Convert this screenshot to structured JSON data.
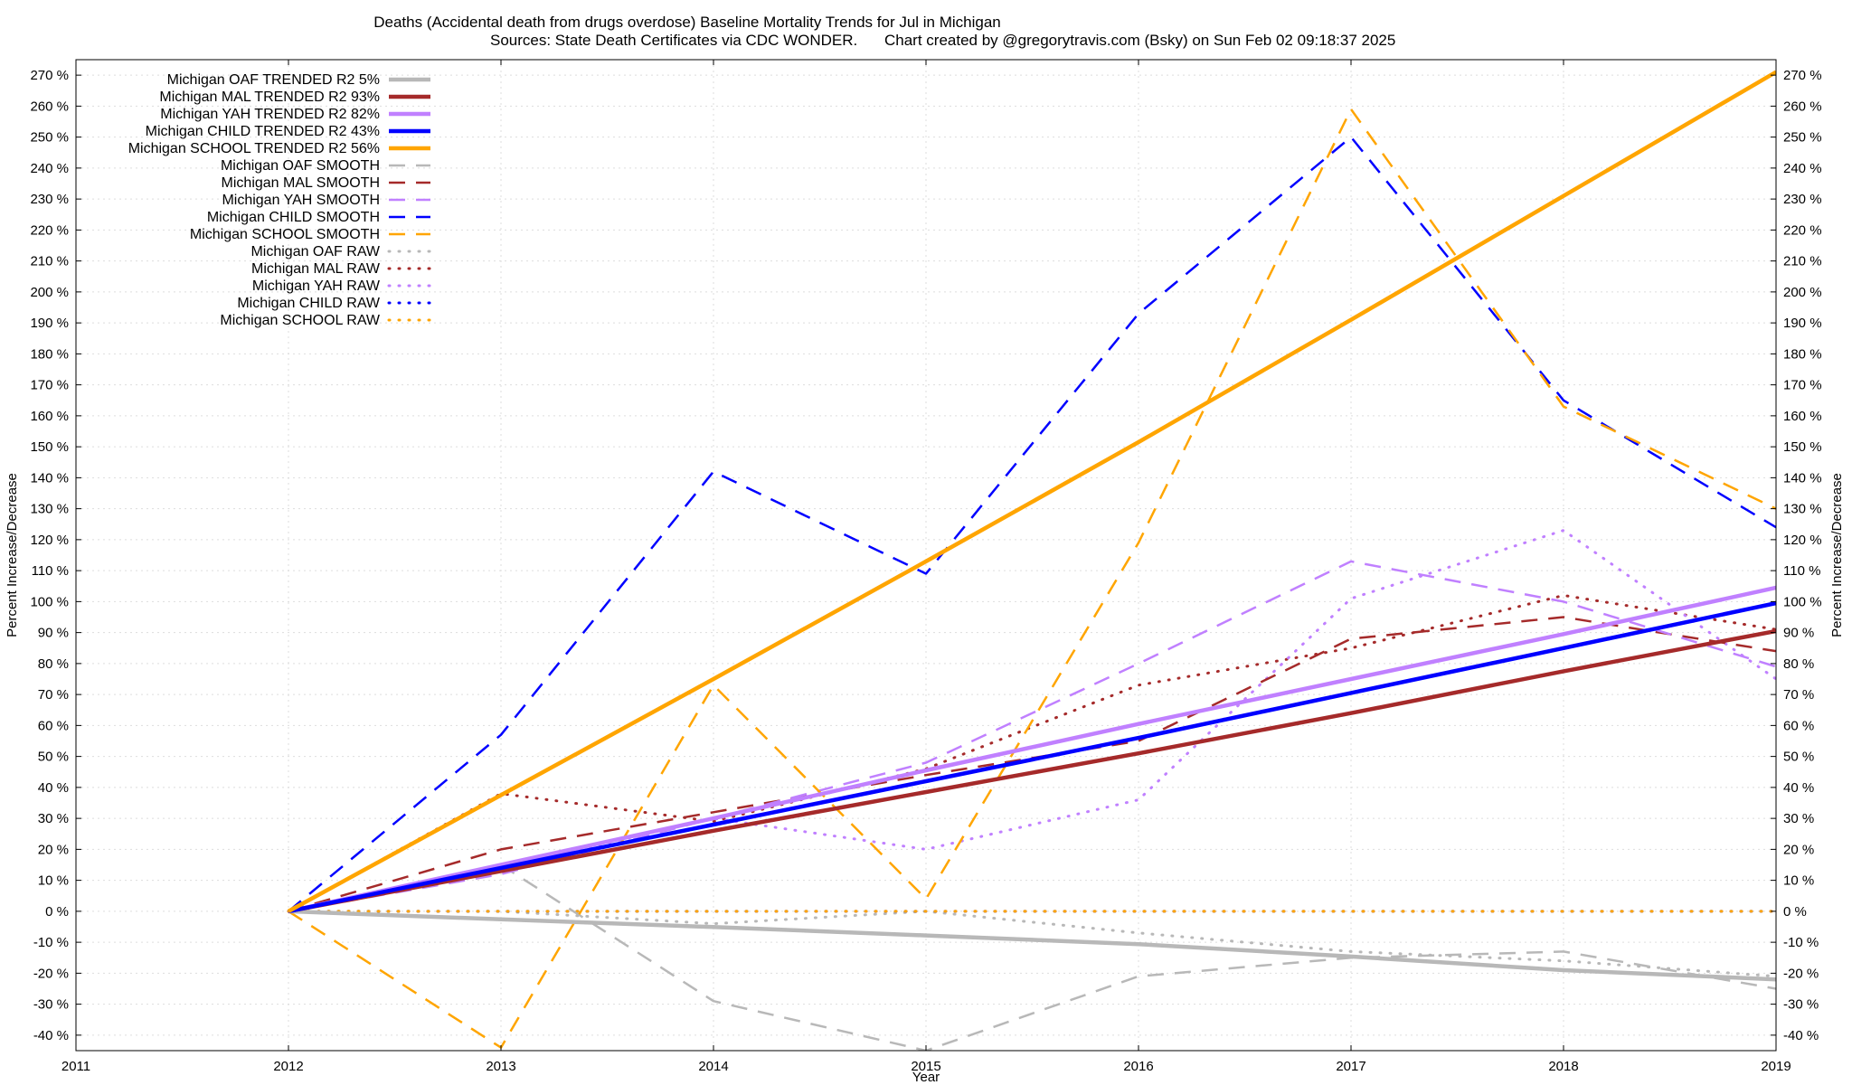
{
  "chart_data": {
    "type": "line",
    "title_line1": "Deaths (Accidental death from drugs overdose)  Baseline Mortality Trends for Jul in Michigan",
    "title_line2_left": "Sources: State Death Certificates via CDC WONDER.",
    "title_line2_right": "Chart created by @gregorytravis.com (Bsky) on Sun Feb 02 09:18:37 2025",
    "xlabel": "Year",
    "ylabel": "Percent Increase/Decrease",
    "xlim": [
      2011,
      2019
    ],
    "ylim": [
      -45,
      275
    ],
    "x_ticks": [
      "2011",
      "2012",
      "2013",
      "2014",
      "2015",
      "2016",
      "2017",
      "2018",
      "2019"
    ],
    "y_ticks": [
      270,
      260,
      250,
      240,
      230,
      220,
      210,
      200,
      190,
      180,
      170,
      160,
      150,
      140,
      130,
      120,
      110,
      100,
      90,
      80,
      70,
      60,
      50,
      40,
      30,
      20,
      10,
      0,
      -10,
      -20,
      -30,
      -40
    ],
    "grid": true,
    "legend_position": "top-left",
    "x": [
      2012,
      2013,
      2014,
      2015,
      2016,
      2017,
      2018,
      2019
    ],
    "series": [
      {
        "name": "Michigan OAF TRENDED R2  5%",
        "style": "trend",
        "color": "#b8b8b8",
        "values": [
          0,
          -2.6,
          -5.1,
          -7.8,
          -10.6,
          -14.6,
          -19,
          -22
        ]
      },
      {
        "name": "Michigan MAL TRENDED R2  93%",
        "style": "trend",
        "color": "#a52a2a",
        "values": [
          0,
          13,
          26,
          38.5,
          51,
          64,
          77.5,
          90.5
        ]
      },
      {
        "name": "Michigan YAH TRENDED R2  82%",
        "style": "trend",
        "color": "#c080ff",
        "values": [
          0,
          15,
          30,
          45.5,
          60.5,
          75,
          89.5,
          104.5
        ]
      },
      {
        "name": "Michigan CHILD TRENDED R2  43%",
        "style": "trend",
        "color": "#0000ff",
        "values": [
          0,
          14,
          28,
          42,
          56,
          70.5,
          85,
          99.5
        ]
      },
      {
        "name": "Michigan SCHOOL TRENDED R2  56%",
        "style": "trend",
        "color": "#ffa500",
        "values": [
          0,
          37.5,
          75,
          113,
          151.5,
          191,
          231,
          271
        ]
      },
      {
        "name": "Michigan OAF SMOOTH",
        "style": "smooth",
        "color": "#b8b8b8",
        "values": [
          0,
          15,
          -29,
          -45,
          -21,
          -15,
          -13,
          -25
        ]
      },
      {
        "name": "Michigan MAL SMOOTH",
        "style": "smooth",
        "color": "#a52a2a",
        "values": [
          0,
          20,
          32,
          44,
          55,
          88,
          95,
          84
        ]
      },
      {
        "name": "Michigan YAH SMOOTH",
        "style": "smooth",
        "color": "#c080ff",
        "values": [
          0,
          12,
          30,
          48,
          80,
          113,
          100,
          79
        ]
      },
      {
        "name": "Michigan CHILD SMOOTH",
        "style": "smooth",
        "color": "#0000ff",
        "values": [
          0,
          57,
          142,
          109,
          193,
          250,
          165,
          124
        ]
      },
      {
        "name": "Michigan SCHOOL SMOOTH",
        "style": "smooth",
        "color": "#ffa500",
        "values": [
          0,
          -44,
          73,
          4,
          119,
          259,
          163,
          130
        ]
      },
      {
        "name": "Michigan OAF RAW",
        "style": "raw",
        "color": "#b8b8b8",
        "values": [
          0,
          0,
          -4,
          0,
          -7,
          -13,
          -16,
          -21
        ]
      },
      {
        "name": "Michigan MAL RAW",
        "style": "raw",
        "color": "#a52a2a",
        "values": [
          0,
          38,
          29,
          46,
          73,
          85,
          102,
          91
        ]
      },
      {
        "name": "Michigan YAH RAW",
        "style": "raw",
        "color": "#c080ff",
        "values": [
          0,
          14,
          30,
          20,
          36,
          101,
          123,
          75
        ]
      },
      {
        "name": "Michigan CHILD RAW",
        "style": "raw",
        "color": "#0000ff",
        "values": [
          0,
          0,
          0,
          0,
          0,
          0,
          0,
          0
        ]
      },
      {
        "name": "Michigan SCHOOL RAW",
        "style": "raw",
        "color": "#ffa500",
        "values": [
          0,
          0,
          0,
          0,
          0,
          0,
          0,
          0
        ]
      }
    ]
  }
}
